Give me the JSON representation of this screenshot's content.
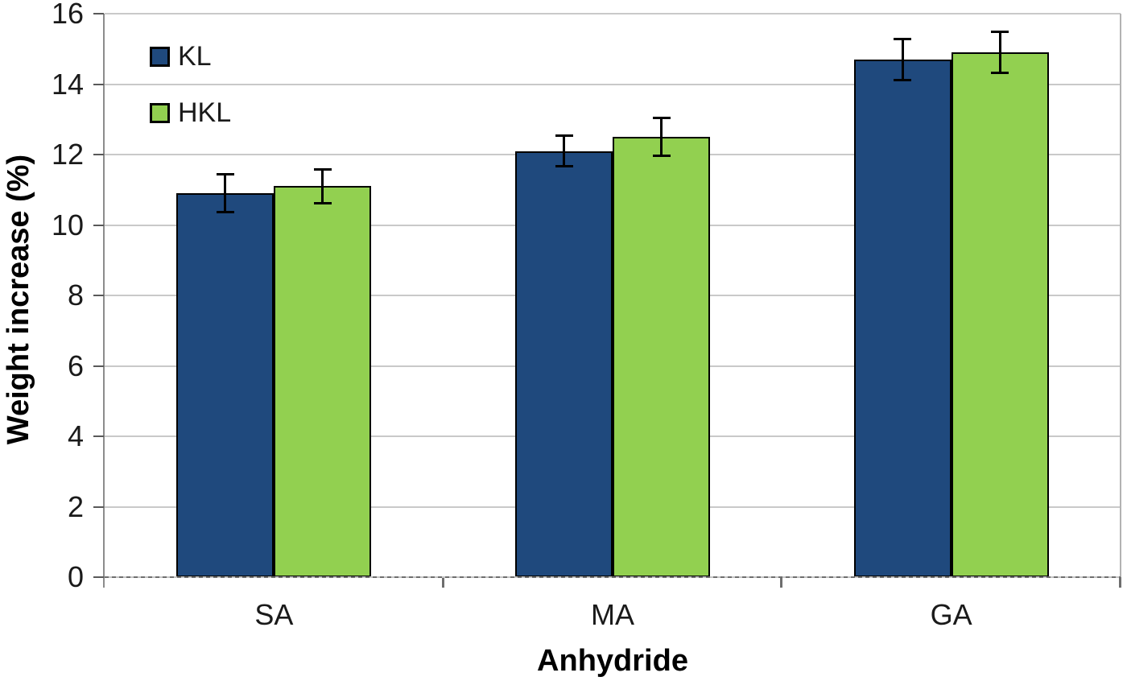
{
  "chart_data": {
    "type": "bar",
    "xlabel": "Anhydride",
    "ylabel": "Weight increase (%)",
    "categories": [
      "SA",
      "MA",
      "GA"
    ],
    "series": [
      {
        "name": "KL",
        "color": "#1F497D",
        "values": [
          10.9,
          12.1,
          14.7
        ],
        "errors": [
          0.55,
          0.45,
          0.6
        ]
      },
      {
        "name": "HKL",
        "color": "#92D050",
        "values": [
          11.1,
          12.5,
          14.9
        ],
        "errors": [
          0.5,
          0.55,
          0.6
        ]
      }
    ],
    "ylim": [
      0,
      16
    ],
    "yticks": [
      0,
      2,
      4,
      6,
      8,
      10,
      12,
      14,
      16
    ],
    "grid": true,
    "legend_position": "top-left",
    "bar_border_color": "#000000",
    "error_bar_color": "#000000"
  },
  "style_colors": {
    "gridline": "#C9C9C9",
    "plot_border": "#B3B3B3",
    "axis_line": "#8C8C8C",
    "tick_mark": "#595959",
    "label_text": "#1A1A1A"
  }
}
